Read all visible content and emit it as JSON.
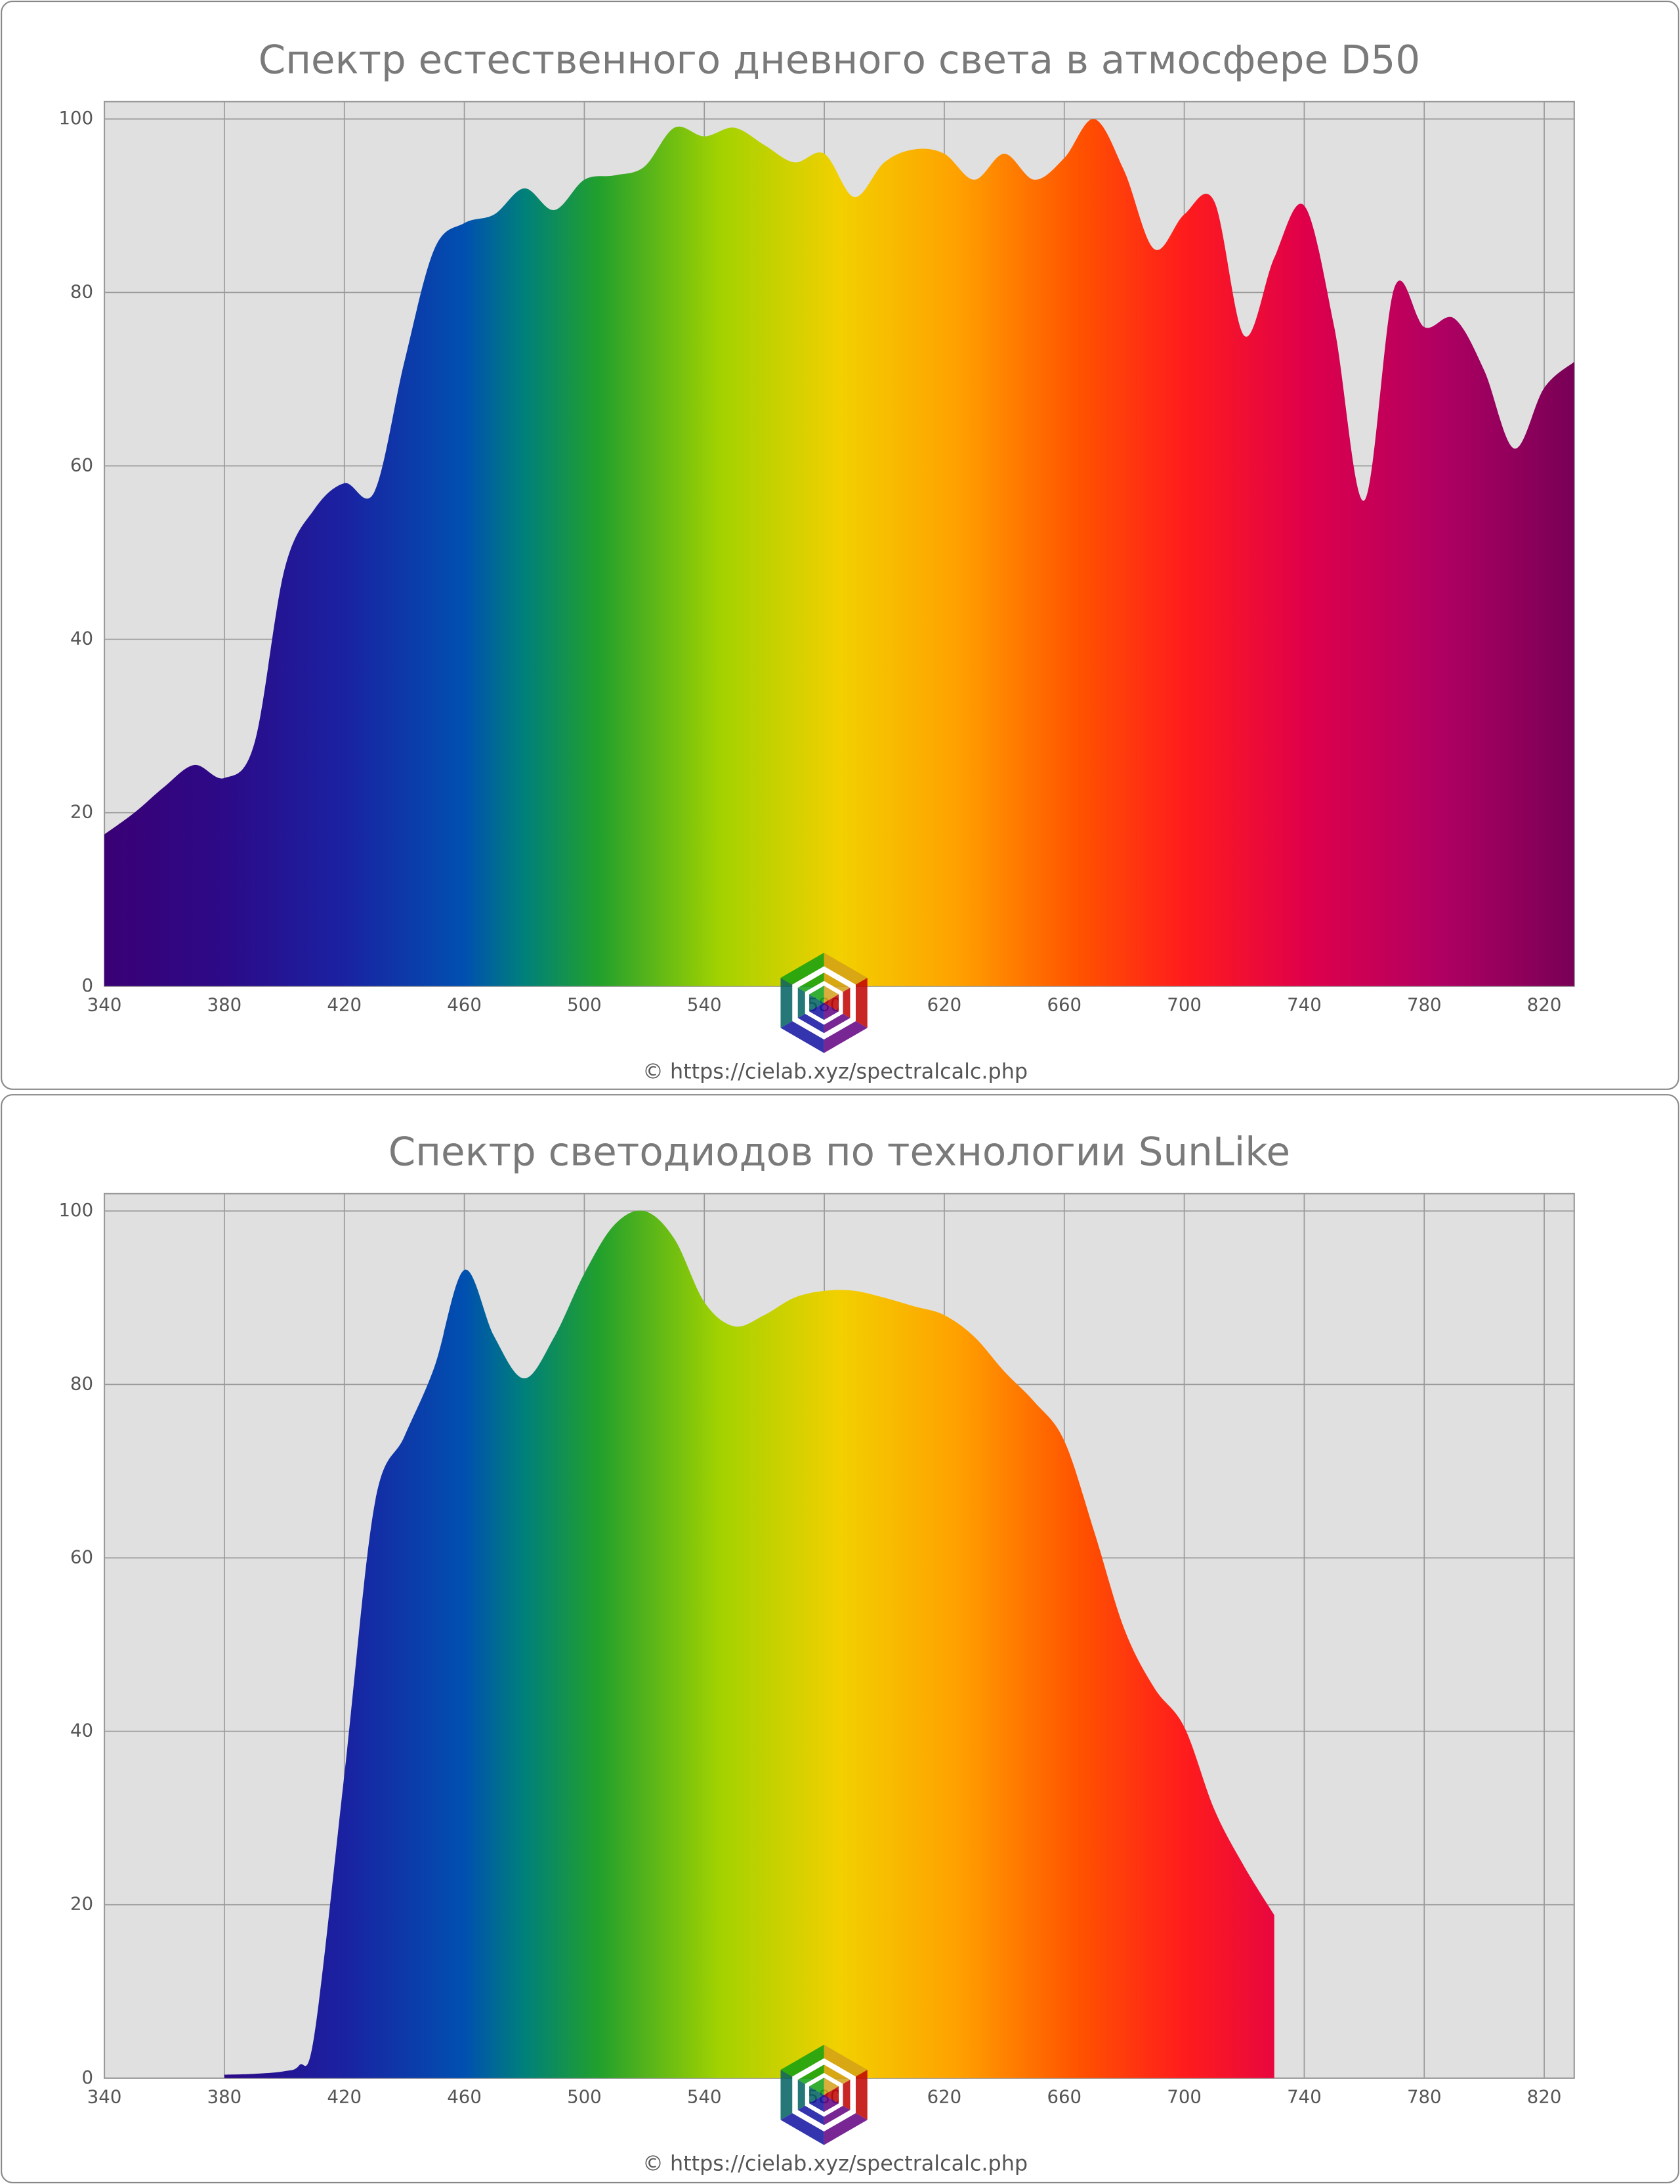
{
  "chart_data": [
    {
      "type": "area",
      "title": "Спектр естественного дневного света в атмосфере D50",
      "source": "© https://cielab.xyz/spectralcalc.php",
      "x": [
        340,
        350,
        360,
        370,
        380,
        390,
        400,
        410,
        420,
        430,
        440,
        450,
        460,
        470,
        480,
        490,
        500,
        510,
        520,
        530,
        540,
        550,
        560,
        570,
        580,
        590,
        600,
        610,
        620,
        630,
        640,
        650,
        660,
        670,
        680,
        690,
        700,
        710,
        720,
        730,
        740,
        750,
        760,
        770,
        780,
        790,
        800,
        810,
        820,
        830
      ],
      "values": [
        17.5,
        20,
        23,
        25.5,
        24,
        28,
        48,
        55,
        58,
        57,
        72,
        85,
        88,
        89,
        92,
        89.5,
        93,
        93.5,
        94.5,
        99,
        98,
        99,
        97,
        95,
        96,
        91,
        95,
        96.5,
        96,
        93,
        96,
        93,
        95.5,
        100,
        94,
        85,
        89,
        90.5,
        75,
        84,
        90,
        76,
        56,
        80.5,
        76,
        77,
        71,
        62,
        69,
        72
      ],
      "xlim": [
        340,
        830
      ],
      "ylim": [
        0,
        102
      ],
      "xticks": [
        340,
        380,
        420,
        460,
        500,
        540,
        580,
        620,
        660,
        700,
        740,
        780,
        820
      ],
      "yticks": [
        0,
        20,
        40,
        60,
        80,
        100
      ],
      "grid": true,
      "gradient": [
        {
          "x": 340,
          "color": "#3a0075"
        },
        {
          "x": 380,
          "color": "#2c0a88"
        },
        {
          "x": 420,
          "color": "#1a22a2"
        },
        {
          "x": 460,
          "color": "#0050b0"
        },
        {
          "x": 480,
          "color": "#00807a"
        },
        {
          "x": 505,
          "color": "#22a02c"
        },
        {
          "x": 545,
          "color": "#a2d200"
        },
        {
          "x": 585,
          "color": "#f2d000"
        },
        {
          "x": 625,
          "color": "#ffa000"
        },
        {
          "x": 665,
          "color": "#ff5200"
        },
        {
          "x": 700,
          "color": "#ff1c1c"
        },
        {
          "x": 740,
          "color": "#e0004a"
        },
        {
          "x": 785,
          "color": "#b00062"
        },
        {
          "x": 830,
          "color": "#780056"
        }
      ]
    },
    {
      "type": "area",
      "title": "Спектр светодиодов по технологии SunLike",
      "source": "© https://cielab.xyz/spectralcalc.php",
      "x": [
        380,
        390,
        400,
        405,
        410,
        420,
        430,
        440,
        450,
        460,
        470,
        480,
        490,
        500,
        510,
        520,
        530,
        540,
        550,
        560,
        570,
        580,
        590,
        600,
        610,
        620,
        630,
        640,
        650,
        660,
        670,
        680,
        690,
        700,
        710,
        720,
        730
      ],
      "values": [
        0.4,
        0.5,
        0.8,
        1.5,
        5,
        35,
        66,
        74,
        82,
        93.2,
        85.5,
        80.7,
        85.5,
        92.8,
        98.4,
        100,
        96.8,
        89.5,
        86.7,
        88,
        90,
        90.8,
        90.8,
        90,
        89,
        88,
        85.5,
        81.5,
        78,
        73.5,
        63,
        51.8,
        45,
        40.5,
        31,
        24.4,
        18.8
      ],
      "xlim": [
        340,
        830
      ],
      "ylim": [
        0,
        102
      ],
      "xticks": [
        340,
        380,
        420,
        460,
        500,
        540,
        580,
        620,
        660,
        700,
        740,
        780,
        820
      ],
      "yticks": [
        0,
        20,
        40,
        60,
        80,
        100
      ],
      "grid": true,
      "gradient": [
        {
          "x": 340,
          "color": "#3a0075"
        },
        {
          "x": 380,
          "color": "#2c0a88"
        },
        {
          "x": 420,
          "color": "#1a22a2"
        },
        {
          "x": 460,
          "color": "#0050b0"
        },
        {
          "x": 480,
          "color": "#00807a"
        },
        {
          "x": 505,
          "color": "#22a02c"
        },
        {
          "x": 545,
          "color": "#a2d200"
        },
        {
          "x": 585,
          "color": "#f2d000"
        },
        {
          "x": 625,
          "color": "#ffa000"
        },
        {
          "x": 665,
          "color": "#ff5200"
        },
        {
          "x": 700,
          "color": "#ff1c1c"
        },
        {
          "x": 740,
          "color": "#e0004a"
        },
        {
          "x": 785,
          "color": "#b00062"
        },
        {
          "x": 830,
          "color": "#780056"
        }
      ]
    }
  ]
}
